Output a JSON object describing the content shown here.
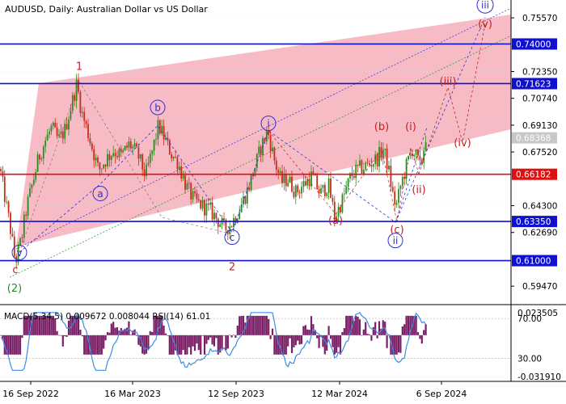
{
  "title_bar": {
    "symbol_text": "AUDUSD, Daily:  Australian Dollar vs US Dollar"
  },
  "colors": {
    "background": "#ffffff",
    "channel_fill": "#f7b7c3",
    "candle_bull": "#2e8b1e",
    "candle_bear": "#cc2a1a",
    "blue_level": "#1010d0",
    "red_level": "#e01010",
    "blue_wave": "#3030d0",
    "red_wave": "#c82020",
    "green_wave": "#2a8a2a",
    "macd_hist": "#7a1e66",
    "rsi_line": "#3a8ee6",
    "price_tag_gray": "#c8c8c8"
  },
  "chart_data": {
    "type": "candlestick",
    "symbol": "AUDUSD",
    "timeframe": "Daily",
    "ylim": [
      0.5841,
      0.7664
    ],
    "x_tick_labels": [
      "16 Sep 2022",
      "16 Mar 2023",
      "12 Sep 2023",
      "12 Mar 2024",
      "6 Sep 2024"
    ],
    "y_tick_labels": [
      "0.75570",
      "0.72350",
      "0.70740",
      "0.69130",
      "0.67520",
      "0.64300",
      "0.62690",
      "0.59470"
    ],
    "price_tags": [
      {
        "label": "0.74000",
        "value": 0.74,
        "kind": "blue"
      },
      {
        "label": "0.71623",
        "value": 0.71623,
        "kind": "blue"
      },
      {
        "label": "0.68368",
        "value": 0.68368,
        "kind": "gray"
      },
      {
        "label": "0.66182",
        "value": 0.66182,
        "kind": "red"
      },
      {
        "label": "0.63350",
        "value": 0.6335,
        "kind": "blue"
      },
      {
        "label": "0.61000",
        "value": 0.61,
        "kind": "blue"
      }
    ],
    "close_path": [
      [
        0,
        0.665
      ],
      [
        6,
        0.648
      ],
      [
        12,
        0.632
      ],
      [
        19,
        0.609
      ],
      [
        26,
        0.622
      ],
      [
        33,
        0.642
      ],
      [
        40,
        0.656
      ],
      [
        48,
        0.672
      ],
      [
        56,
        0.682
      ],
      [
        64,
        0.69
      ],
      [
        72,
        0.682
      ],
      [
        80,
        0.688
      ],
      [
        88,
        0.703
      ],
      [
        95,
        0.716
      ],
      [
        101,
        0.699
      ],
      [
        108,
        0.688
      ],
      [
        115,
        0.676
      ],
      [
        122,
        0.664
      ],
      [
        130,
        0.67
      ],
      [
        140,
        0.676
      ],
      [
        150,
        0.673
      ],
      [
        160,
        0.68
      ],
      [
        170,
        0.674
      ],
      [
        180,
        0.661
      ],
      [
        188,
        0.675
      ],
      [
        196,
        0.691
      ],
      [
        204,
        0.683
      ],
      [
        212,
        0.674
      ],
      [
        220,
        0.669
      ],
      [
        230,
        0.655
      ],
      [
        240,
        0.646
      ],
      [
        250,
        0.643
      ],
      [
        260,
        0.64
      ],
      [
        270,
        0.634
      ],
      [
        278,
        0.629
      ],
      [
        286,
        0.632
      ],
      [
        296,
        0.641
      ],
      [
        306,
        0.652
      ],
      [
        314,
        0.664
      ],
      [
        322,
        0.677
      ],
      [
        331,
        0.688
      ],
      [
        340,
        0.669
      ],
      [
        348,
        0.657
      ],
      [
        356,
        0.659
      ],
      [
        366,
        0.651
      ],
      [
        376,
        0.656
      ],
      [
        386,
        0.661
      ],
      [
        396,
        0.65
      ],
      [
        406,
        0.656
      ],
      [
        414,
        0.636
      ],
      [
        424,
        0.647
      ],
      [
        434,
        0.661
      ],
      [
        444,
        0.665
      ],
      [
        454,
        0.667
      ],
      [
        466,
        0.671
      ],
      [
        474,
        0.677
      ],
      [
        480,
        0.666
      ],
      [
        486,
        0.649
      ],
      [
        490,
        0.642
      ],
      [
        496,
        0.656
      ],
      [
        504,
        0.669
      ],
      [
        510,
        0.677
      ],
      [
        516,
        0.671
      ],
      [
        520,
        0.665
      ],
      [
        528,
        0.689
      ]
    ],
    "horizontal_levels": [
      {
        "value": 0.74,
        "kind": "blue"
      },
      {
        "value": 0.71623,
        "kind": "blue"
      },
      {
        "value": 0.66182,
        "kind": "red"
      },
      {
        "value": 0.6335,
        "kind": "blue"
      },
      {
        "value": 0.61,
        "kind": "blue"
      }
    ],
    "wave_labels": [
      {
        "text": "1",
        "x": 98,
        "y": 0.7266,
        "style": "plain",
        "color": "red_wave"
      },
      {
        "text": "2",
        "x": 287,
        "y": 0.6065,
        "style": "plain",
        "color": "red_wave"
      },
      {
        "text": "c",
        "x": 19,
        "y": 0.6046,
        "style": "plain",
        "color": "red_wave"
      },
      {
        "text": "(2)",
        "x": 18,
        "y": 0.5935,
        "style": "plain",
        "color": "green_wave"
      },
      {
        "text": "v",
        "x": 24,
        "y": 0.6149,
        "style": "circle",
        "color": "blue_wave"
      },
      {
        "text": "a",
        "x": 124,
        "y": 0.6503,
        "style": "circle",
        "color": "blue_wave"
      },
      {
        "text": "b",
        "x": 195,
        "y": 0.7019,
        "style": "circle",
        "color": "blue_wave"
      },
      {
        "text": "c",
        "x": 287,
        "y": 0.6241,
        "style": "circle",
        "color": "blue_wave"
      },
      {
        "text": "i",
        "x": 332,
        "y": 0.6924,
        "style": "circle",
        "color": "blue_wave"
      },
      {
        "text": "ii",
        "x": 489,
        "y": 0.6221,
        "style": "circle",
        "color": "blue_wave"
      },
      {
        "text": "iii",
        "x": 600,
        "y": 0.7634,
        "style": "circle",
        "color": "blue_wave"
      },
      {
        "text": "(a)",
        "x": 415,
        "y": 0.6344,
        "style": "plain",
        "color": "red_wave"
      },
      {
        "text": "(b)",
        "x": 472,
        "y": 0.6905,
        "style": "plain",
        "color": "red_wave"
      },
      {
        "text": "(c)",
        "x": 491,
        "y": 0.6287,
        "style": "plain",
        "color": "red_wave"
      },
      {
        "text": "(i)",
        "x": 508,
        "y": 0.6905,
        "style": "plain",
        "color": "red_wave"
      },
      {
        "text": "(ii)",
        "x": 518,
        "y": 0.6527,
        "style": "plain",
        "color": "red_wave"
      },
      {
        "text": "(iii)",
        "x": 554,
        "y": 0.7176,
        "style": "plain",
        "color": "red_wave"
      },
      {
        "text": "(iv)",
        "x": 572,
        "y": 0.6808,
        "style": "plain",
        "color": "red_wave"
      },
      {
        "text": "(v)",
        "x": 600,
        "y": 0.752,
        "style": "plain",
        "color": "red_wave"
      }
    ],
    "macd_rsi": {
      "label": "MACD(5,34,5) 0.009672 0.008044 RSI(14) 61.01",
      "left_tick_labels": [
        "70.00",
        "30.00"
      ],
      "right_tick_labels": [
        "0.023505",
        "-0.031910"
      ]
    }
  }
}
